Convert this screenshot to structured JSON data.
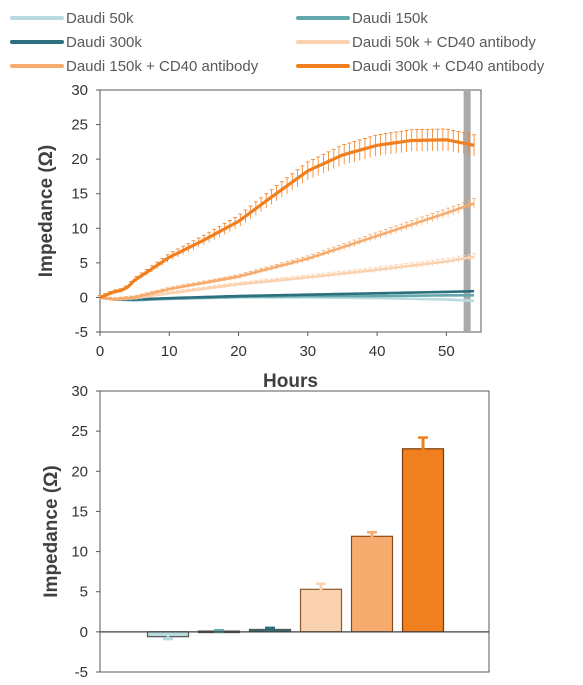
{
  "colors": {
    "d50": "#b9dbe0",
    "d150": "#62a8ad",
    "d300": "#2c6f7d",
    "d50cd": "#fbd2b0",
    "d150cd": "#f6ac6e",
    "d300cd": "#f07f1f",
    "grey_bar": "#aaaaaa",
    "axis": "#595959"
  },
  "chart_data": [
    {
      "type": "line",
      "xlabel": "Hours",
      "ylabel": "Impedance (Ω)",
      "xlim": [
        0,
        55
      ],
      "ylim": [
        -5,
        30
      ],
      "xticks": [
        "0",
        "10",
        "20",
        "30",
        "40",
        "50"
      ],
      "yticks": [
        "-5",
        "0",
        "5",
        "10",
        "15",
        "20",
        "25",
        "30"
      ],
      "legend": "top",
      "highlight_time": 53,
      "series": [
        {
          "name": "Daudi 50k",
          "color_key": "d50",
          "x": [
            0,
            2,
            5,
            10,
            20,
            30,
            40,
            50,
            54
          ],
          "y": [
            0,
            -0.3,
            -0.3,
            -0.2,
            0,
            0,
            -0.1,
            -0.3,
            -0.5
          ]
        },
        {
          "name": "Daudi 150k",
          "color_key": "d150",
          "x": [
            0,
            2,
            5,
            10,
            20,
            30,
            40,
            50,
            54
          ],
          "y": [
            0,
            -0.3,
            -0.4,
            -0.2,
            0.1,
            0.2,
            0.2,
            0.3,
            0.3
          ]
        },
        {
          "name": "Daudi 300k",
          "color_key": "d300",
          "x": [
            0,
            2,
            5,
            10,
            20,
            30,
            40,
            50,
            54
          ],
          "y": [
            0,
            -0.3,
            -0.3,
            -0.1,
            0.2,
            0.4,
            0.6,
            0.8,
            0.9
          ]
        },
        {
          "name": "Daudi 50k + CD40 antibody",
          "color_key": "d50cd",
          "x": [
            0,
            2,
            5,
            10,
            20,
            30,
            40,
            50,
            54
          ],
          "y": [
            0,
            -0.3,
            -0.1,
            0.6,
            1.9,
            2.9,
            4.0,
            5.2,
            5.9
          ]
        },
        {
          "name": "Daudi 150k + CD40 antibody",
          "color_key": "d150cd",
          "x": [
            0,
            2,
            5,
            10,
            20,
            30,
            40,
            50,
            54
          ],
          "y": [
            0,
            -0.3,
            0,
            1.2,
            3.0,
            5.6,
            8.9,
            12.2,
            13.6
          ]
        },
        {
          "name": "Daudi 300k + CD40 antibody",
          "color_key": "d300cd",
          "x": [
            0,
            1,
            2,
            3,
            4,
            5,
            7,
            10,
            15,
            20,
            25,
            30,
            35,
            40,
            45,
            50,
            54
          ],
          "y": [
            0,
            0.4,
            0.8,
            1.0,
            1.5,
            2.5,
            3.8,
            5.8,
            8.3,
            11.0,
            14.7,
            18.3,
            20.6,
            22.0,
            22.7,
            22.8,
            22.0
          ]
        }
      ]
    },
    {
      "type": "bar",
      "ylabel": "Impedance (Ω)",
      "ylim": [
        -5,
        30
      ],
      "yticks": [
        "-5",
        "0",
        "5",
        "10",
        "15",
        "20",
        "25",
        "30"
      ],
      "series": [
        {
          "name": "Daudi 50k",
          "color_key": "d50",
          "value": -0.6,
          "error": 0.3
        },
        {
          "name": "Daudi 150k",
          "color_key": "d150",
          "value": 0.1,
          "error": 0.1
        },
        {
          "name": "Daudi 300k",
          "color_key": "d300",
          "value": 0.3,
          "error": 0.2
        },
        {
          "name": "Daudi 50k + CD40 antibody",
          "color_key": "d50cd",
          "value": 5.3,
          "error": 0.7
        },
        {
          "name": "Daudi 150k + CD40 antibody",
          "color_key": "d150cd",
          "value": 11.9,
          "error": 0.5
        },
        {
          "name": "Daudi 300k + CD40 antibody",
          "color_key": "d300cd",
          "value": 22.8,
          "error": 1.4
        }
      ]
    }
  ]
}
